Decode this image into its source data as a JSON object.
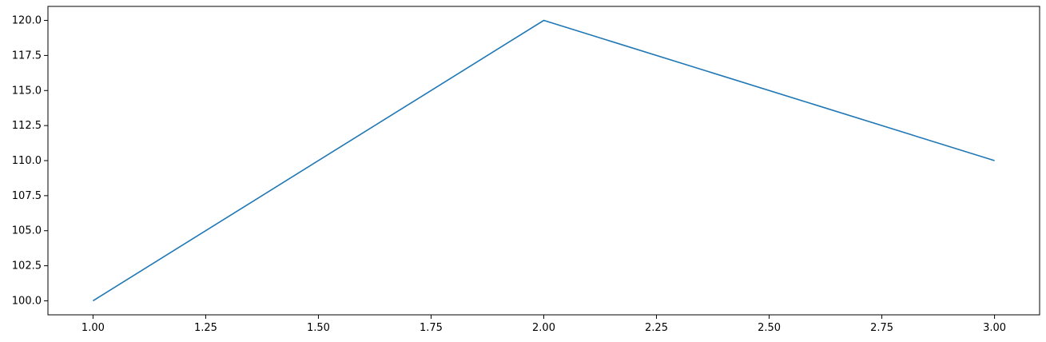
{
  "chart_data": {
    "type": "line",
    "title": "",
    "xlabel": "",
    "ylabel": "",
    "x": [
      1.0,
      2.0,
      3.0
    ],
    "series": [
      {
        "values": [
          100.0,
          120.0,
          110.0
        ],
        "color": "#1f77b4"
      }
    ],
    "xlim": [
      0.9,
      3.1
    ],
    "ylim": [
      99.0,
      121.0
    ],
    "x_ticks": [
      1.0,
      1.25,
      1.5,
      1.75,
      2.0,
      2.25,
      2.5,
      2.75,
      3.0
    ],
    "x_tick_labels": [
      "1.00",
      "1.25",
      "1.50",
      "1.75",
      "2.00",
      "2.25",
      "2.50",
      "2.75",
      "3.00"
    ],
    "y_ticks": [
      100.0,
      102.5,
      105.0,
      107.5,
      110.0,
      112.5,
      115.0,
      117.5,
      120.0
    ],
    "y_tick_labels": [
      "100.0",
      "102.5",
      "105.0",
      "107.5",
      "110.0",
      "112.5",
      "115.0",
      "117.5",
      "120.0"
    ],
    "grid": false,
    "legend": "none"
  }
}
